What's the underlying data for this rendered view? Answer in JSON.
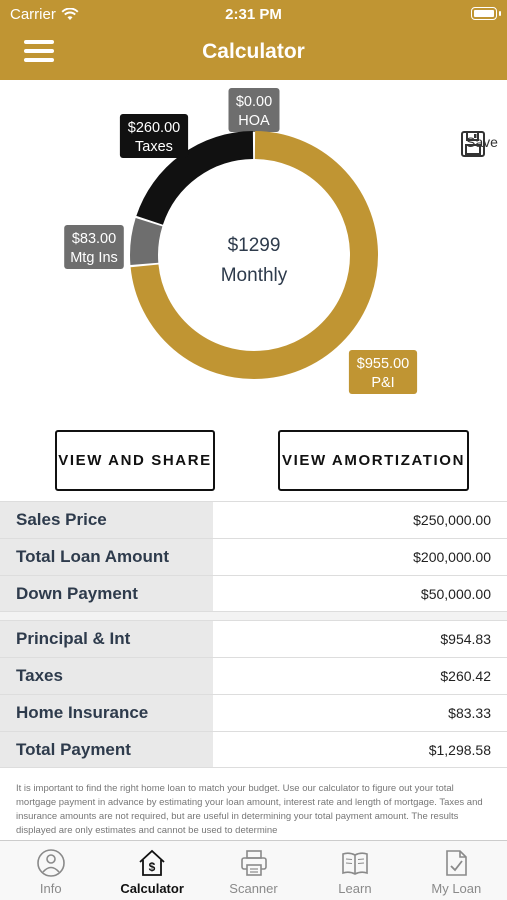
{
  "status_bar": {
    "carrier": "Carrier",
    "time": "2:31 PM"
  },
  "header": {
    "title": "Calculator"
  },
  "save": {
    "label": "Save"
  },
  "chart_data": {
    "type": "pie",
    "center": {
      "amount": "$1299",
      "label": "Monthly"
    },
    "slices": [
      {
        "name": "HOA",
        "value": 0.0,
        "amount_label": "$0.00",
        "color": "#6e6e6e"
      },
      {
        "name": "P&I",
        "value": 955.0,
        "amount_label": "$955.00",
        "color": "#c09533"
      },
      {
        "name": "Mtg Ins",
        "value": 83.0,
        "amount_label": "$83.00",
        "color": "#6e6e6e"
      },
      {
        "name": "Taxes",
        "value": 260.0,
        "amount_label": "$260.00",
        "color": "#111111"
      }
    ]
  },
  "actions": {
    "share_label": "VIEW AND SHARE",
    "amortization_label": "VIEW AMORTIZATION"
  },
  "loan_table": [
    {
      "label": "Sales Price",
      "value": "$250,000.00"
    },
    {
      "label": "Total Loan Amount",
      "value": "$200,000.00"
    },
    {
      "label": "Down Payment",
      "value": "$50,000.00"
    }
  ],
  "payment_table": [
    {
      "label": "Principal & Int",
      "value": "$954.83"
    },
    {
      "label": "Taxes",
      "value": "$260.42"
    },
    {
      "label": "Home Insurance",
      "value": "$83.33"
    },
    {
      "label": "Total Payment",
      "value": "$1,298.58"
    }
  ],
  "disclaimer": "It is important to find the right home loan to match your budget. Use our calculator to figure out your total mortgage payment in advance by estimating your loan amount, interest rate and length of mortgage. Taxes and insurance amounts are not required, but are useful in determining your total payment amount. The results displayed are only estimates and cannot be used to determine",
  "tabs": [
    {
      "label": "Info",
      "icon": "person-info-icon",
      "active": false
    },
    {
      "label": "Calculator",
      "icon": "house-dollar-icon",
      "active": true
    },
    {
      "label": "Scanner",
      "icon": "printer-icon",
      "active": false
    },
    {
      "label": "Learn",
      "icon": "book-icon",
      "active": false
    },
    {
      "label": "My Loan",
      "icon": "clipboard-check-icon",
      "active": false
    }
  ]
}
